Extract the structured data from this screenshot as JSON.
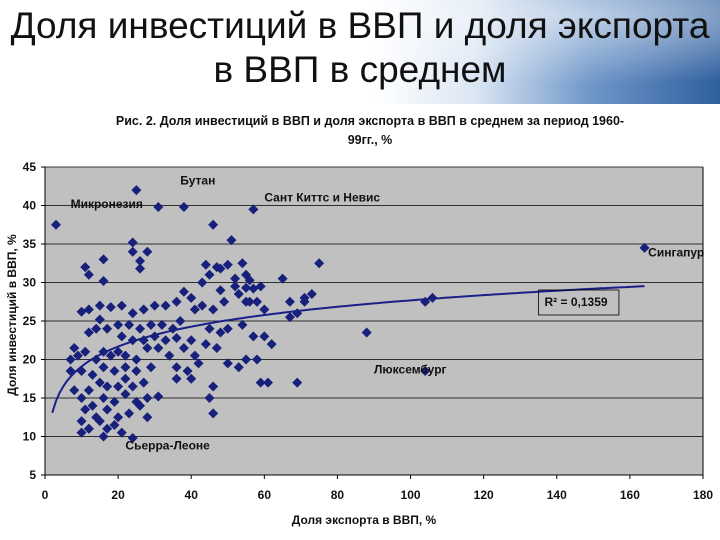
{
  "slide": {
    "title_line1": "Доля инвестиций в ВВП и доля экспорта",
    "title_line2": "в ВВП в среднем"
  },
  "figure": {
    "caption_line1": "Рис. 2. Доля инвестиций в ВВП и доля экспорта в ВВП в среднем за период 1960-",
    "caption_line2": "99гг., %"
  },
  "colors": {
    "marker": "#17207a",
    "trend": "#1a1f8a",
    "plot_bg": "#c0c0c0",
    "grid": "#000000"
  },
  "chart_data": {
    "type": "scatter",
    "xlabel": "Доля экспорта в ВВП, %",
    "ylabel": "Доля инвестиций в ВВП, %",
    "xlim": [
      0,
      180
    ],
    "ylim": [
      5,
      45
    ],
    "x_ticks": [
      0,
      20,
      40,
      60,
      80,
      100,
      120,
      140,
      160,
      180
    ],
    "y_ticks": [
      5,
      10,
      15,
      20,
      25,
      30,
      35,
      40,
      45
    ],
    "grid": "horizontal",
    "marker": "diamond",
    "trendline": {
      "type": "logarithmic",
      "r2_label": "R² = 0,1359"
    },
    "points": [
      [
        3,
        37.5
      ],
      [
        25,
        42
      ],
      [
        31,
        39.8
      ],
      [
        38,
        39.8
      ],
      [
        57,
        39.5
      ],
      [
        46,
        37.5
      ],
      [
        51,
        35.5
      ],
      [
        24,
        35.2
      ],
      [
        28,
        34
      ],
      [
        24,
        34
      ],
      [
        26,
        32.8
      ],
      [
        16,
        33
      ],
      [
        11,
        32
      ],
      [
        12,
        31
      ],
      [
        16,
        30.2
      ],
      [
        26,
        31.8
      ],
      [
        44,
        32.3
      ],
      [
        47,
        32
      ],
      [
        48,
        31.8
      ],
      [
        50,
        32.3
      ],
      [
        54,
        32.5
      ],
      [
        55,
        31
      ],
      [
        52,
        30.5
      ],
      [
        56,
        30.3
      ],
      [
        45,
        31
      ],
      [
        43,
        30
      ],
      [
        48,
        29
      ],
      [
        52,
        29.5
      ],
      [
        55,
        29.3
      ],
      [
        57,
        29.2
      ],
      [
        59,
        29.5
      ],
      [
        65,
        30.5
      ],
      [
        71,
        28
      ],
      [
        73,
        28.5
      ],
      [
        75,
        32.5
      ],
      [
        38,
        28.8
      ],
      [
        40,
        28
      ],
      [
        36,
        27.5
      ],
      [
        33,
        27
      ],
      [
        30,
        27
      ],
      [
        27,
        26.5
      ],
      [
        24,
        26
      ],
      [
        21,
        27
      ],
      [
        18,
        26.8
      ],
      [
        15,
        27
      ],
      [
        12,
        26.5
      ],
      [
        10,
        26.2
      ],
      [
        41,
        26.5
      ],
      [
        43,
        27
      ],
      [
        46,
        26.5
      ],
      [
        49,
        27.5
      ],
      [
        53,
        28.5
      ],
      [
        55,
        27.5
      ],
      [
        56,
        27.5
      ],
      [
        58,
        27.5
      ],
      [
        60,
        26.5
      ],
      [
        67,
        27.5
      ],
      [
        71,
        27.5
      ],
      [
        67,
        25.5
      ],
      [
        69,
        26
      ],
      [
        37,
        25
      ],
      [
        35,
        24
      ],
      [
        32,
        24.5
      ],
      [
        29,
        24.5
      ],
      [
        26,
        24
      ],
      [
        23,
        24.5
      ],
      [
        20,
        24.5
      ],
      [
        17,
        24
      ],
      [
        14,
        24
      ],
      [
        15,
        25.2
      ],
      [
        12,
        23.5
      ],
      [
        21,
        23
      ],
      [
        24,
        22.5
      ],
      [
        27,
        22.5
      ],
      [
        30,
        23
      ],
      [
        33,
        22.5
      ],
      [
        36,
        22.8
      ],
      [
        40,
        22.5
      ],
      [
        45,
        24
      ],
      [
        48,
        23.5
      ],
      [
        50,
        24
      ],
      [
        54,
        24.5
      ],
      [
        57,
        23
      ],
      [
        60,
        23
      ],
      [
        62,
        22
      ],
      [
        104,
        27.5
      ],
      [
        106,
        28
      ],
      [
        88,
        23.5
      ],
      [
        8,
        21.5
      ],
      [
        9,
        20.5
      ],
      [
        11,
        21
      ],
      [
        14,
        20
      ],
      [
        16,
        21
      ],
      [
        18,
        20.5
      ],
      [
        20,
        21
      ],
      [
        22,
        20.5
      ],
      [
        25,
        20
      ],
      [
        28,
        21.5
      ],
      [
        31,
        21.5
      ],
      [
        34,
        20.5
      ],
      [
        38,
        21.5
      ],
      [
        41,
        20.5
      ],
      [
        44,
        22
      ],
      [
        47,
        21.5
      ],
      [
        50,
        19.5
      ],
      [
        53,
        19
      ],
      [
        55,
        20
      ],
      [
        58,
        20
      ],
      [
        7,
        20
      ],
      [
        7,
        18.5
      ],
      [
        10,
        18.5
      ],
      [
        13,
        18
      ],
      [
        16,
        19
      ],
      [
        19,
        18.5
      ],
      [
        22,
        19
      ],
      [
        25,
        18.5
      ],
      [
        29,
        19
      ],
      [
        36,
        19
      ],
      [
        39,
        18.5
      ],
      [
        42,
        19.5
      ],
      [
        8,
        16
      ],
      [
        12,
        16
      ],
      [
        15,
        17
      ],
      [
        17,
        16.5
      ],
      [
        20,
        16.5
      ],
      [
        22,
        17.5
      ],
      [
        24,
        16.5
      ],
      [
        27,
        17
      ],
      [
        36,
        17.5
      ],
      [
        40,
        17.5
      ],
      [
        46,
        16.5
      ],
      [
        59,
        17
      ],
      [
        61,
        17
      ],
      [
        69,
        17
      ],
      [
        10,
        15
      ],
      [
        13,
        14
      ],
      [
        16,
        15
      ],
      [
        19,
        14.5
      ],
      [
        22,
        15.5
      ],
      [
        25,
        14.5
      ],
      [
        28,
        15
      ],
      [
        31,
        15.2
      ],
      [
        45,
        15
      ],
      [
        11,
        13.5
      ],
      [
        14,
        12.5
      ],
      [
        17,
        13.5
      ],
      [
        20,
        12.5
      ],
      [
        23,
        13
      ],
      [
        26,
        14
      ],
      [
        46,
        13
      ],
      [
        10,
        12
      ],
      [
        12,
        11
      ],
      [
        15,
        12
      ],
      [
        17,
        11
      ],
      [
        19,
        11.5
      ],
      [
        21,
        10.5
      ],
      [
        28,
        12.5
      ],
      [
        10,
        10.5
      ],
      [
        12,
        11
      ],
      [
        16,
        10
      ],
      [
        24,
        9.8
      ],
      [
        104,
        18.5
      ],
      [
        164,
        34.5
      ]
    ],
    "annotations": [
      {
        "text": "Бутан",
        "x": 37,
        "y": 42.7
      },
      {
        "text": "Микронезия",
        "x": 7,
        "y": 39.7
      },
      {
        "text": "Сант Киттс и Невис",
        "x": 60,
        "y": 40.5
      },
      {
        "text": "Сингапур",
        "x": 165,
        "y": 33.4
      },
      {
        "text": "Люксембург",
        "x": 90,
        "y": 18.2
      },
      {
        "text": "Сьерра-Леоне",
        "x": 22,
        "y": 8.3
      }
    ]
  }
}
